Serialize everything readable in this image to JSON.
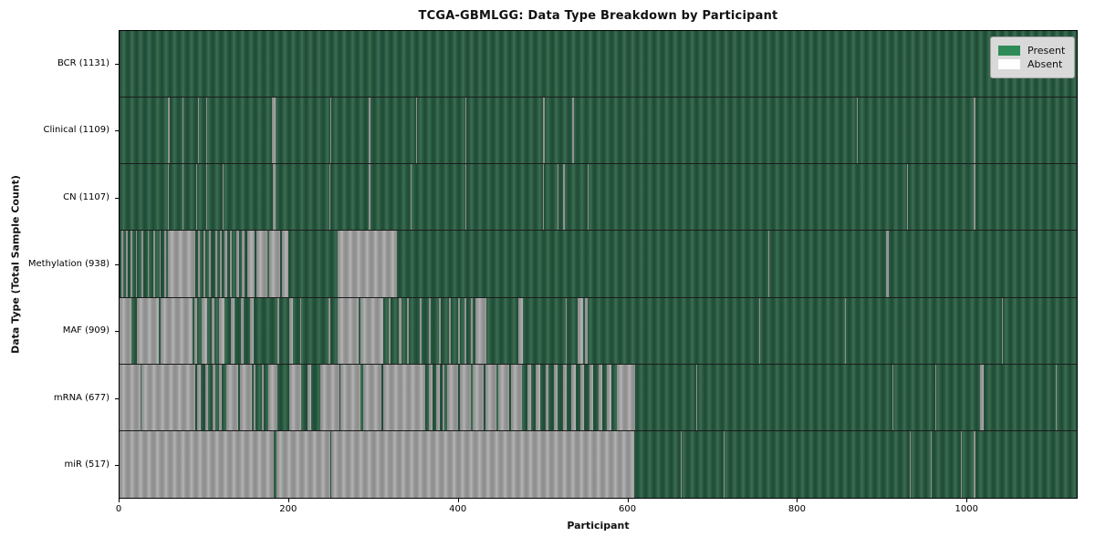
{
  "chart_data": {
    "type": "heatmap",
    "title": "TCGA-GBMLGG: Data Type Breakdown by Participant",
    "xlabel": "Participant",
    "ylabel": "Data Type (Total Sample Count)",
    "x_range": [
      0,
      1131
    ],
    "xticks": [
      0,
      200,
      400,
      600,
      800,
      1000
    ],
    "grid": false,
    "legend": {
      "position": "upper right",
      "entries": [
        {
          "label": "Present",
          "color": "#2e8b57"
        },
        {
          "label": "Absent",
          "color": "#ffffff"
        }
      ]
    },
    "cell_states": [
      "Present",
      "Absent"
    ],
    "rows": [
      {
        "label": "BCR (1131)",
        "name": "BCR",
        "total": 1131,
        "absent_ranges": []
      },
      {
        "label": "Clinical (1109)",
        "name": "Clinical",
        "total": 1109,
        "absent_ranges": [
          [
            57,
            59
          ],
          [
            74,
            76
          ],
          [
            93,
            94
          ],
          [
            102,
            103
          ],
          [
            180,
            184
          ],
          [
            249,
            250
          ],
          [
            294,
            296
          ],
          [
            350,
            351
          ],
          [
            409,
            410
          ],
          [
            500,
            502
          ],
          [
            535,
            537
          ],
          [
            871,
            872
          ],
          [
            1009,
            1011
          ]
        ]
      },
      {
        "label": "CN (1107)",
        "name": "CN",
        "total": 1107,
        "absent_ranges": [
          [
            57,
            58
          ],
          [
            74,
            76
          ],
          [
            91,
            92
          ],
          [
            102,
            103
          ],
          [
            122,
            123
          ],
          [
            181,
            184
          ],
          [
            248,
            249
          ],
          [
            294,
            296
          ],
          [
            344,
            345
          ],
          [
            409,
            410
          ],
          [
            500,
            501
          ],
          [
            517,
            519
          ],
          [
            524,
            526
          ],
          [
            553,
            554
          ],
          [
            930,
            932
          ],
          [
            1009,
            1011
          ]
        ]
      },
      {
        "label": "Methylation (938)",
        "name": "Methylation",
        "total": 938,
        "absent_ranges": [
          [
            2,
            4
          ],
          [
            8,
            10
          ],
          [
            13,
            15
          ],
          [
            19,
            21
          ],
          [
            26,
            28
          ],
          [
            33,
            35
          ],
          [
            40,
            42
          ],
          [
            47,
            49
          ],
          [
            53,
            55
          ],
          [
            57,
            90
          ],
          [
            93,
            95
          ],
          [
            99,
            101
          ],
          [
            106,
            108
          ],
          [
            113,
            115
          ],
          [
            119,
            121
          ],
          [
            124,
            127
          ],
          [
            130,
            133
          ],
          [
            138,
            141
          ],
          [
            145,
            148
          ],
          [
            151,
            160
          ],
          [
            162,
            175
          ],
          [
            177,
            190
          ],
          [
            192,
            199
          ],
          [
            258,
            328
          ],
          [
            767,
            768
          ],
          [
            906,
            909
          ]
        ]
      },
      {
        "label": "MAF (909)",
        "name": "MAF",
        "total": 909,
        "absent_ranges": [
          [
            0,
            14
          ],
          [
            21,
            46
          ],
          [
            48,
            86
          ],
          [
            88,
            92
          ],
          [
            97,
            103
          ],
          [
            109,
            112
          ],
          [
            118,
            124
          ],
          [
            131,
            136
          ],
          [
            143,
            147
          ],
          [
            154,
            158
          ],
          [
            187,
            189
          ],
          [
            201,
            205
          ],
          [
            213,
            215
          ],
          [
            247,
            249
          ],
          [
            258,
            283
          ],
          [
            285,
            312
          ],
          [
            318,
            320
          ],
          [
            330,
            333
          ],
          [
            340,
            342
          ],
          [
            355,
            357
          ],
          [
            366,
            368
          ],
          [
            377,
            379
          ],
          [
            389,
            391
          ],
          [
            400,
            402
          ],
          [
            408,
            410
          ],
          [
            415,
            417
          ],
          [
            421,
            433
          ],
          [
            471,
            477
          ],
          [
            527,
            528
          ],
          [
            541,
            548
          ],
          [
            550,
            553
          ],
          [
            756,
            757
          ],
          [
            857,
            858
          ],
          [
            1043,
            1044
          ]
        ]
      },
      {
        "label": "mRNA (677)",
        "name": "mRNA",
        "total": 677,
        "absent_ranges": [
          [
            0,
            25
          ],
          [
            26,
            90
          ],
          [
            92,
            96
          ],
          [
            101,
            105
          ],
          [
            110,
            113
          ],
          [
            118,
            121
          ],
          [
            126,
            140
          ],
          [
            142,
            156
          ],
          [
            158,
            161
          ],
          [
            168,
            170
          ],
          [
            176,
            187
          ],
          [
            201,
            215
          ],
          [
            222,
            226
          ],
          [
            237,
            260
          ],
          [
            261,
            285
          ],
          [
            288,
            309
          ],
          [
            312,
            361
          ],
          [
            365,
            370
          ],
          [
            374,
            378
          ],
          [
            382,
            384
          ],
          [
            387,
            400
          ],
          [
            402,
            415
          ],
          [
            417,
            430
          ],
          [
            432,
            445
          ],
          [
            447,
            460
          ],
          [
            462,
            475
          ],
          [
            482,
            486
          ],
          [
            492,
            497
          ],
          [
            503,
            507
          ],
          [
            513,
            518
          ],
          [
            524,
            528
          ],
          [
            534,
            539
          ],
          [
            545,
            549
          ],
          [
            555,
            560
          ],
          [
            566,
            570
          ],
          [
            576,
            581
          ],
          [
            588,
            609
          ],
          [
            681,
            682
          ],
          [
            913,
            914
          ],
          [
            964,
            965
          ],
          [
            1017,
            1021
          ],
          [
            1106,
            1107
          ]
        ]
      },
      {
        "label": "miR (517)",
        "name": "miR",
        "total": 517,
        "absent_ranges": [
          [
            0,
            182
          ],
          [
            185,
            249
          ],
          [
            250,
            608
          ],
          [
            663,
            664
          ],
          [
            714,
            715
          ],
          [
            934,
            935
          ],
          [
            959,
            960
          ],
          [
            994,
            995
          ],
          [
            1009,
            1011
          ]
        ]
      }
    ]
  }
}
